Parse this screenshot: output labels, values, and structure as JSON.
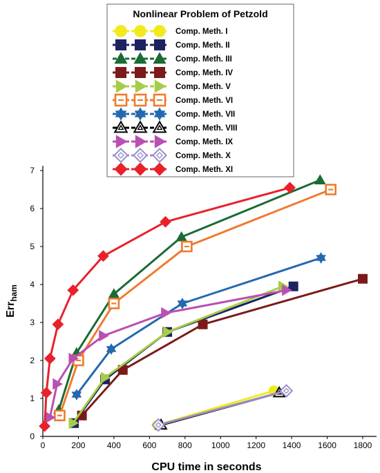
{
  "chart_data": {
    "type": "line",
    "title": "Nonlinear Problem of Petzold",
    "xlabel": "CPU time in seconds",
    "ylabel": "Err",
    "ylabel_sub": "ham",
    "xlim": [
      0,
      1800
    ],
    "ylim": [
      0,
      7
    ],
    "xticks": [
      0,
      200,
      400,
      600,
      800,
      1000,
      1200,
      1400,
      1600,
      1800
    ],
    "yticks": [
      0,
      1,
      2,
      3,
      4,
      5,
      6,
      7
    ],
    "grid": false,
    "legend_position": "top",
    "series": [
      {
        "name": "Comp. Meth. I",
        "color": "#f2ea1d",
        "marker": "circle",
        "x": [
          645,
          1300
        ],
        "y": [
          0.3,
          1.2
        ]
      },
      {
        "name": "Comp. Meth. II",
        "color": "#1d2260",
        "marker": "square",
        "x": [
          175,
          350,
          700,
          1410
        ],
        "y": [
          0.35,
          1.5,
          2.75,
          3.95
        ]
      },
      {
        "name": "Comp. Meth. III",
        "color": "#1a6b34",
        "marker": "triangle",
        "x": [
          90,
          190,
          400,
          780,
          1560
        ],
        "y": [
          0.7,
          2.2,
          3.75,
          5.25,
          6.75
        ]
      },
      {
        "name": "Comp. Meth. IV",
        "color": "#7b1a1a",
        "marker": "square",
        "x": [
          220,
          450,
          900,
          1800
        ],
        "y": [
          0.55,
          1.75,
          2.95,
          4.15
        ]
      },
      {
        "name": "Comp. Meth. V",
        "color": "#a6cd48",
        "marker": "triangle-right",
        "x": [
          170,
          350,
          700,
          1350
        ],
        "y": [
          0.35,
          1.55,
          2.75,
          3.95
        ]
      },
      {
        "name": "Comp. Meth. VI",
        "color": "#f07a2c",
        "marker": "square-open",
        "x": [
          95,
          200,
          400,
          810,
          1620
        ],
        "y": [
          0.55,
          2.0,
          3.5,
          5.0,
          6.5
        ]
      },
      {
        "name": "Comp. Meth. VII",
        "color": "#2369b0",
        "marker": "star",
        "x": [
          190,
          385,
          785,
          1565
        ],
        "y": [
          1.1,
          2.3,
          3.5,
          4.7
        ]
      },
      {
        "name": "Comp. Meth. VIII",
        "color": "#000000",
        "marker": "triangle-open",
        "x": [
          665,
          1330
        ],
        "y": [
          0.3,
          1.15
        ]
      },
      {
        "name": "Comp. Meth. IX",
        "color": "#b94fb3",
        "marker": "triangle-right",
        "x": [
          40,
          80,
          170,
          340,
          690,
          1370
        ],
        "y": [
          0.5,
          1.38,
          2.05,
          2.65,
          3.25,
          3.85
        ]
      },
      {
        "name": "Comp. Meth. X",
        "color": "#9a8ec9",
        "marker": "diamond-open",
        "x": [
          650,
          1370
        ],
        "y": [
          0.3,
          1.2
        ]
      },
      {
        "name": "Comp. Meth. XI",
        "color": "#e8212b",
        "marker": "diamond",
        "x": [
          10,
          20,
          40,
          85,
          170,
          340,
          690,
          1390
        ],
        "y": [
          0.27,
          1.15,
          2.05,
          2.95,
          3.85,
          4.75,
          5.65,
          6.55
        ]
      }
    ]
  }
}
